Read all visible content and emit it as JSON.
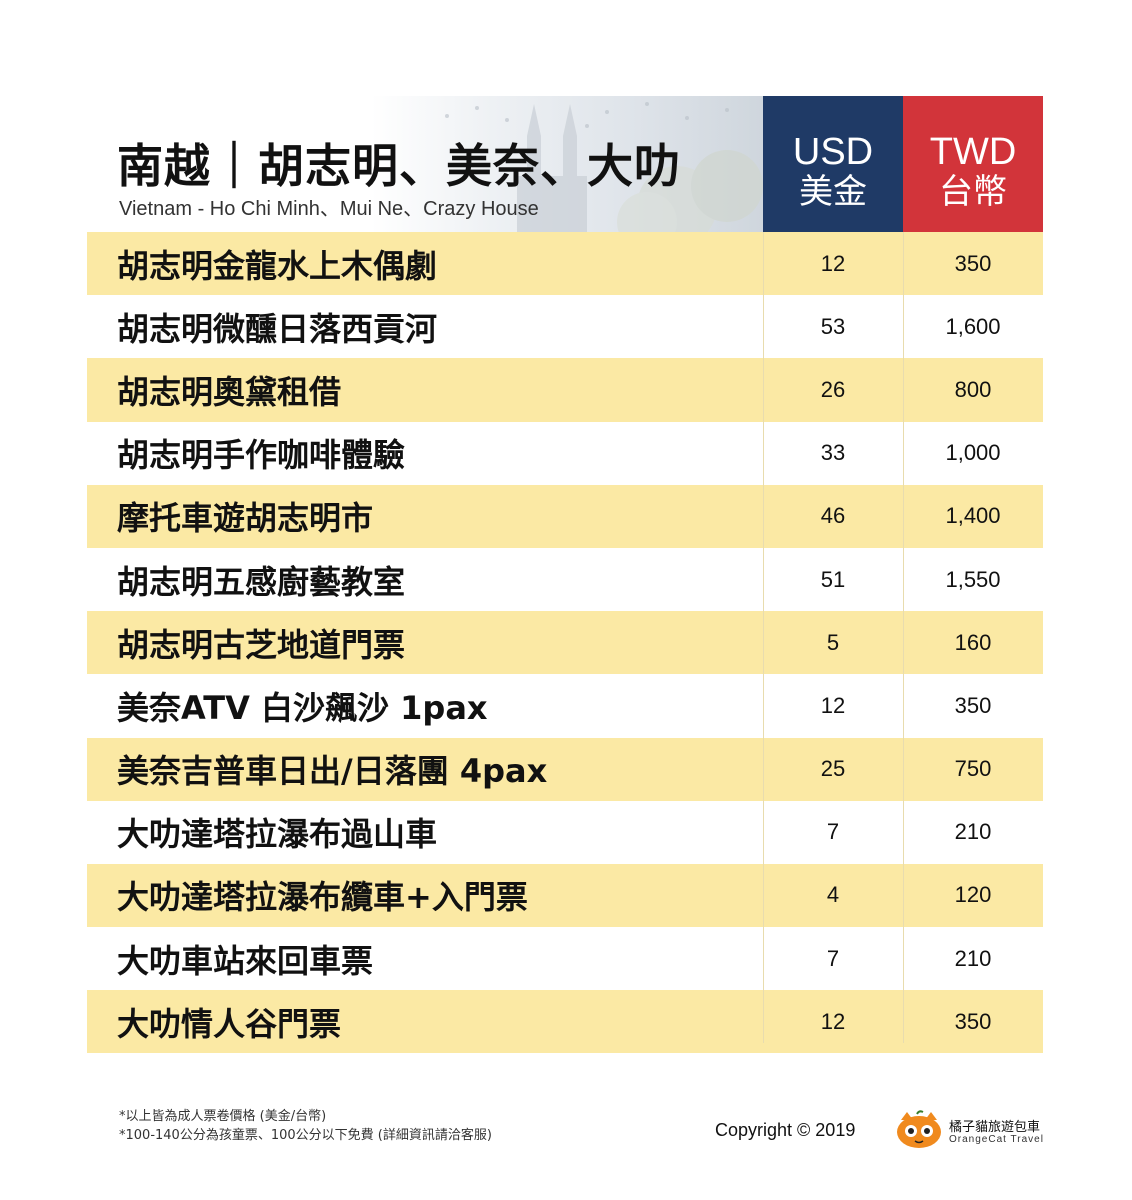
{
  "header": {
    "title": "南越｜胡志明、美奈、大叻",
    "subtitle": "Vietnam - Ho Chi Minh、Mui Ne、Crazy House",
    "usd_label_en": "USD",
    "usd_label_zh": "美金",
    "twd_label_en": "TWD",
    "twd_label_zh": "台幣"
  },
  "items": [
    {
      "name": "胡志明金龍水上木偶劇",
      "usd": "12",
      "twd": "350"
    },
    {
      "name": "胡志明微醺日落西貢河",
      "usd": "53",
      "twd": "1,600"
    },
    {
      "name": "胡志明奧黛租借",
      "usd": "26",
      "twd": "800"
    },
    {
      "name": "胡志明手作咖啡體驗",
      "usd": "33",
      "twd": "1,000"
    },
    {
      "name": "摩托車遊胡志明市",
      "usd": "46",
      "twd": "1,400"
    },
    {
      "name": "胡志明五感廚藝教室",
      "usd": "51",
      "twd": "1,550"
    },
    {
      "name": "胡志明古芝地道門票",
      "usd": "5",
      "twd": "160"
    },
    {
      "name": "美奈ATV 白沙飆沙 1pax",
      "usd": "12",
      "twd": "350"
    },
    {
      "name": "美奈吉普車日出/日落團  4pax",
      "usd": "25",
      "twd": "750"
    },
    {
      "name": "大叻達塔拉瀑布過山車",
      "usd": "7",
      "twd": "210"
    },
    {
      "name": "大叻達塔拉瀑布纜車+入門票",
      "usd": "4",
      "twd": "120"
    },
    {
      "name": "大叻車站來回車票",
      "usd": "7",
      "twd": "210"
    },
    {
      "name": "大叻情人谷門票",
      "usd": "12",
      "twd": "350"
    }
  ],
  "footer": {
    "note1": "*以上皆為成人票卷價格 (美金/台幣)",
    "note2": "*100-140公分為孩童票、100公分以下免費 (詳細資訊請洽客服)",
    "copyright": "Copyright © 2019",
    "brand_zh": "橘子貓旅遊包車",
    "brand_en": "OrangeCat Travel"
  },
  "colors": {
    "usd_header": "#1f3a66",
    "twd_header": "#d2343a",
    "row_highlight": "#fbe9a4",
    "brand_orange": "#f08a1e"
  },
  "icons": [
    "orange-cat-logo-icon"
  ]
}
